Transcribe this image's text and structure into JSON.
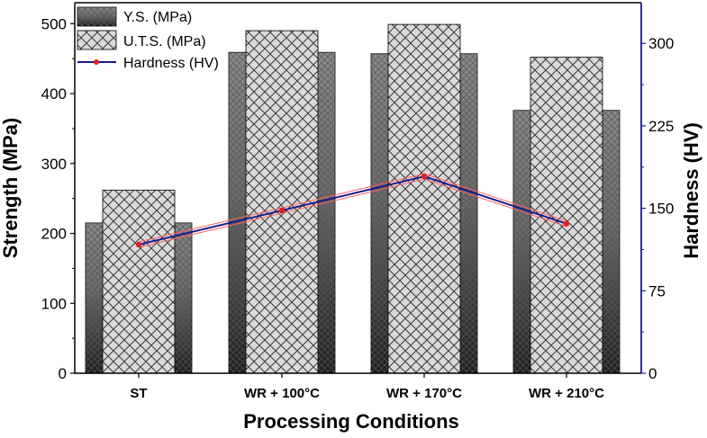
{
  "chart_data": {
    "type": "bar",
    "categories": [
      "ST",
      "WR + 100°C",
      "WR + 170°C",
      "WR + 210°C"
    ],
    "series": [
      {
        "name": "Y.S. (MPa)",
        "axis": "left",
        "values": [
          215,
          459,
          457,
          376
        ]
      },
      {
        "name": "U.T.S. (MPa)",
        "axis": "left",
        "values": [
          262,
          490,
          499,
          452
        ]
      },
      {
        "name": "Hardness (HV)",
        "axis": "right",
        "type": "line",
        "values": [
          117,
          148,
          179,
          136
        ]
      }
    ],
    "xlabel": "Processing Conditions",
    "ylabel": "Strength (MPa)",
    "y2label": "Hardness (HV)",
    "ylim": [
      0,
      530
    ],
    "y2lim": [
      0,
      337
    ],
    "yticks": [
      0,
      100,
      200,
      300,
      400,
      500
    ],
    "y2ticks": [
      0,
      75,
      150,
      225,
      300
    ],
    "legend": "top-left",
    "grid": false,
    "colors": {
      "hardness_line": "#1a1a8c",
      "hardness_marker": "#e02020",
      "hardness_offset": "#ff6060",
      "right_axis": "#1a1a8c"
    }
  }
}
